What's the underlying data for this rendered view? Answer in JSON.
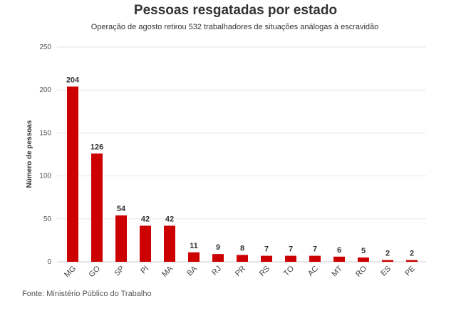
{
  "chart_data": {
    "type": "bar",
    "title": "Pessoas resgatadas por estado",
    "subtitle": "Operação de agosto retirou 532 trabalhadores de situações análogas à escravidão",
    "xlabel": "",
    "ylabel": "Número de pessoas",
    "categories": [
      "MG",
      "GO",
      "SP",
      "PI",
      "MA",
      "BA",
      "RJ",
      "PR",
      "RS",
      "TO",
      "AC",
      "MT",
      "RO",
      "ES",
      "PE"
    ],
    "values": [
      204,
      126,
      54,
      42,
      42,
      11,
      9,
      8,
      7,
      7,
      7,
      6,
      5,
      2,
      2
    ],
    "ylim": [
      0,
      250
    ],
    "yticks": [
      "0",
      "50",
      "100",
      "150",
      "200",
      "250"
    ],
    "grid": true,
    "legend": "none",
    "bar_color": "#cc0000",
    "source": "Fonte: Ministério Público do Trabalho"
  }
}
